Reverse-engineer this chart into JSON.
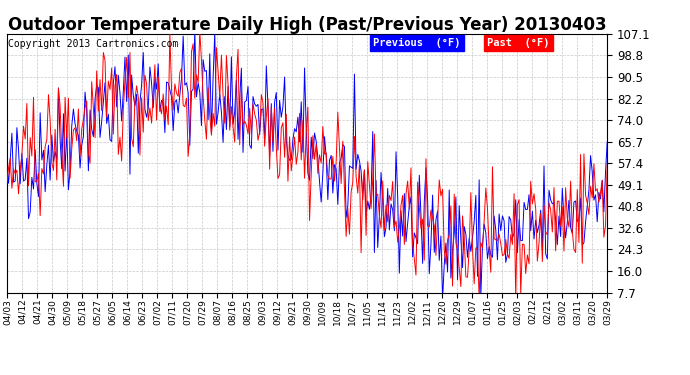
{
  "title": "Outdoor Temperature Daily High (Past/Previous Year) 20130403",
  "copyright": "Copyright 2013 Cartronics.com",
  "yticks": [
    7.7,
    16.0,
    24.3,
    32.6,
    40.8,
    49.1,
    57.4,
    65.7,
    74.0,
    82.2,
    90.5,
    98.8,
    107.1
  ],
  "ymin": 7.7,
  "ymax": 107.1,
  "legend_labels": [
    "Previous  (°F)",
    "Past  (°F)"
  ],
  "line_colors": [
    "blue",
    "red"
  ],
  "legend_colors": [
    "blue",
    "red"
  ],
  "background_color": "#ffffff",
  "grid_color": "#bbbbbb",
  "title_fontsize": 12,
  "tick_fontsize": 8.5,
  "copyright_fontsize": 7,
  "xtick_labels": [
    "04/03",
    "04/12",
    "04/21",
    "04/30",
    "05/09",
    "05/18",
    "05/27",
    "06/05",
    "06/14",
    "06/23",
    "07/02",
    "07/11",
    "07/20",
    "07/29",
    "08/07",
    "08/16",
    "08/25",
    "09/03",
    "09/12",
    "09/21",
    "09/30",
    "10/09",
    "10/18",
    "10/27",
    "11/05",
    "11/14",
    "11/23",
    "12/02",
    "12/11",
    "12/20",
    "12/29",
    "01/07",
    "01/16",
    "01/25",
    "02/03",
    "02/12",
    "02/21",
    "03/02",
    "03/11",
    "03/20",
    "03/29"
  ],
  "n_days": 362,
  "day_start": 93,
  "seed": 42
}
